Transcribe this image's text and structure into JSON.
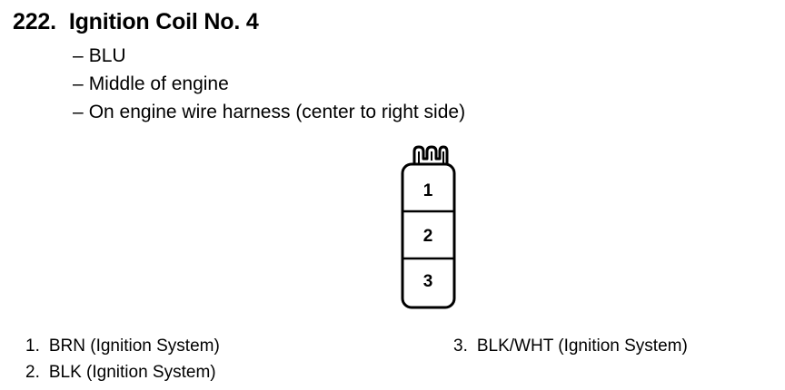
{
  "heading": {
    "number": "222.",
    "title": "Ignition Coil No. 4"
  },
  "details": [
    "BLU",
    "Middle of engine",
    "On engine wire harness (center to right side)"
  ],
  "connector": {
    "cavities": [
      "1",
      "2",
      "3"
    ]
  },
  "pins": [
    {
      "number": "1.",
      "label": "BRN (Ignition System)"
    },
    {
      "number": "2.",
      "label": "BLK (Ignition System)"
    },
    {
      "number": "3.",
      "label": "BLK/WHT (Ignition System)"
    }
  ]
}
